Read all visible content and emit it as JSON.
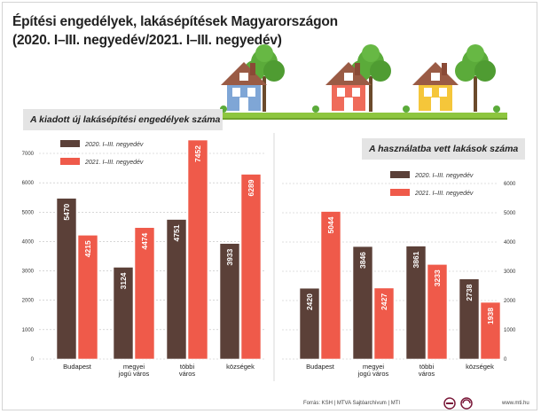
{
  "title_line1": "Építési engedélyek, lakásépítések Magyarországon",
  "title_line2": "(2020. I–III. negyedév/2021. I–III. negyedév)",
  "footer": {
    "source": "Forrás: KSH | MTVA Sajtóarchívum | MTI",
    "site": "www.mti.hu"
  },
  "colors": {
    "series2020": "#5b4038",
    "series2021": "#ef5a4a",
    "grid": "#bfbfbf",
    "grass": "#8dc63f"
  },
  "chart_data": [
    {
      "type": "bar",
      "title": "A kiadott új lakásépítési engedélyek száma",
      "categories": [
        "Budapest",
        "megyei\njogú város",
        "többi\nváros",
        "községek"
      ],
      "series": [
        {
          "name": "2020. I–III. negyedév",
          "values": [
            5470,
            3124,
            4751,
            3933
          ]
        },
        {
          "name": "2021. I–III. negyedév",
          "values": [
            4215,
            4474,
            7452,
            6289
          ]
        }
      ],
      "yticks": [
        "0",
        "1000",
        "2000",
        "3000",
        "4000",
        "5000",
        "6000",
        "7000"
      ],
      "ylim": [
        0,
        7000
      ],
      "axis_side": "left",
      "legend": "top-left"
    },
    {
      "type": "bar",
      "title": "A használatba vett lakások száma",
      "categories": [
        "Budapest",
        "megyei\njogú város",
        "többi\nváros",
        "községek"
      ],
      "series": [
        {
          "name": "2020. I–III. negyedév",
          "values": [
            2420,
            3846,
            3861,
            2738
          ]
        },
        {
          "name": "2021. I–III. negyedév",
          "values": [
            5044,
            2427,
            3233,
            1938
          ]
        }
      ],
      "yticks": [
        "0",
        "1000",
        "2000",
        "3000",
        "4000",
        "5000",
        "6000"
      ],
      "ylim": [
        0,
        6000
      ],
      "axis_side": "right",
      "legend": "top-right"
    }
  ]
}
